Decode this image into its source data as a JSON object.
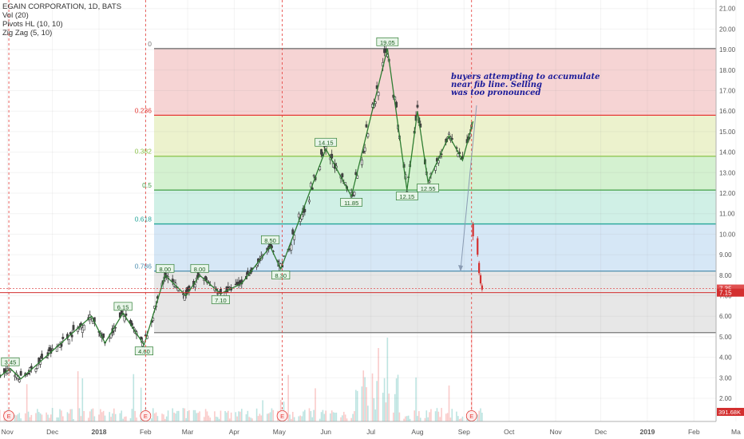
{
  "symbol": {
    "title": "EGAIN CORPORATION, 1D, BATS",
    "indicators": [
      "Vol (20)",
      "Pivots HL (10, 10)",
      "Zig Zag (5, 10)"
    ]
  },
  "annotation": {
    "lines": [
      "buyers attempting to accumulate",
      "near fib line.  Selling",
      "was too pronounced"
    ],
    "color": "#1a1a99"
  },
  "chart_data": {
    "type": "candlestick",
    "x_ticks": [
      "Nov",
      "Dec",
      "2018",
      "Feb",
      "Mar",
      "Apr",
      "May",
      "Jun",
      "Jul",
      "Aug",
      "Sep",
      "Oct",
      "Nov",
      "Dec",
      "2019",
      "Feb",
      "Ma"
    ],
    "y_ticks": [
      "2.00",
      "3.00",
      "4.00",
      "5.00",
      "6.00",
      "7.00",
      "8.00",
      "9.00",
      "10.00",
      "11.00",
      "12.00",
      "13.00",
      "14.00",
      "15.00",
      "16.00",
      "17.00",
      "18.00",
      "19.00",
      "20.00",
      "21.00"
    ],
    "y_range": [
      1.2,
      21.3
    ],
    "last_price_labels": [
      {
        "text": "7.35",
        "value": 7.35,
        "color": "#e05050"
      },
      {
        "text": "7.15",
        "value": 7.15,
        "color": "#d32f2f"
      }
    ],
    "volume_label": "391.68K",
    "earnings_markers": [
      "E",
      "E",
      "E",
      "E"
    ],
    "fib_levels": [
      {
        "label": "0",
        "value": 19.05,
        "line_color": "#787878",
        "fill": "#f4cccc"
      },
      {
        "label": "0.236",
        "value": 15.8,
        "line_color": "#e53935",
        "fill": "#e9f0c4"
      },
      {
        "label": "0.382",
        "value": 13.8,
        "line_color": "#8bc34a",
        "fill": "#cdeec8"
      },
      {
        "label": "0.5",
        "value": 12.15,
        "line_color": "#43a047",
        "fill": "#c8ede2"
      },
      {
        "label": "0.618",
        "value": 10.5,
        "line_color": "#26a69a",
        "fill": "#cfe3f4"
      },
      {
        "label": "0.786",
        "value": 8.2,
        "line_color": "#4f8fb0",
        "fill": "#e3e3e3"
      },
      {
        "label": "1",
        "value": 5.2,
        "line_color": "#787878",
        "fill": null
      }
    ],
    "pivot_labels": [
      "3.45",
      "6.15",
      "4.60",
      "8.00",
      "8.00",
      "7.10",
      "8.50",
      "8.30",
      "14.15",
      "11.85",
      "19.05",
      "12.15",
      "12.55"
    ],
    "zigzag": [
      {
        "date": "2017-10-25",
        "price": 2.95
      },
      {
        "date": "2017-11-03",
        "price": 3.45
      },
      {
        "date": "2017-11-10",
        "price": 2.95
      },
      {
        "date": "2017-12-27",
        "price": 6.0
      },
      {
        "date": "2018-01-05",
        "price": 4.7
      },
      {
        "date": "2018-01-17",
        "price": 6.15
      },
      {
        "date": "2018-01-31",
        "price": 4.6
      },
      {
        "date": "2018-02-14",
        "price": 8.0
      },
      {
        "date": "2018-02-28",
        "price": 7.0
      },
      {
        "date": "2018-03-09",
        "price": 8.0
      },
      {
        "date": "2018-03-23",
        "price": 7.1
      },
      {
        "date": "2018-04-06",
        "price": 7.6
      },
      {
        "date": "2018-04-25",
        "price": 9.4
      },
      {
        "date": "2018-05-02",
        "price": 8.3
      },
      {
        "date": "2018-06-01",
        "price": 14.15
      },
      {
        "date": "2018-06-18",
        "price": 11.85
      },
      {
        "date": "2018-07-12",
        "price": 19.05
      },
      {
        "date": "2018-07-25",
        "price": 12.15
      },
      {
        "date": "2018-08-01",
        "price": 16.0
      },
      {
        "date": "2018-08-08",
        "price": 12.55
      },
      {
        "date": "2018-08-22",
        "price": 14.8
      },
      {
        "date": "2018-08-31",
        "price": 13.6
      },
      {
        "date": "2018-09-07",
        "price": 15.5
      }
    ],
    "colors": {
      "up": "#26a69a",
      "down": "#ef5350",
      "zigzag": "#2e7d32",
      "candle": "#333333",
      "earnings": "#e53935"
    }
  }
}
